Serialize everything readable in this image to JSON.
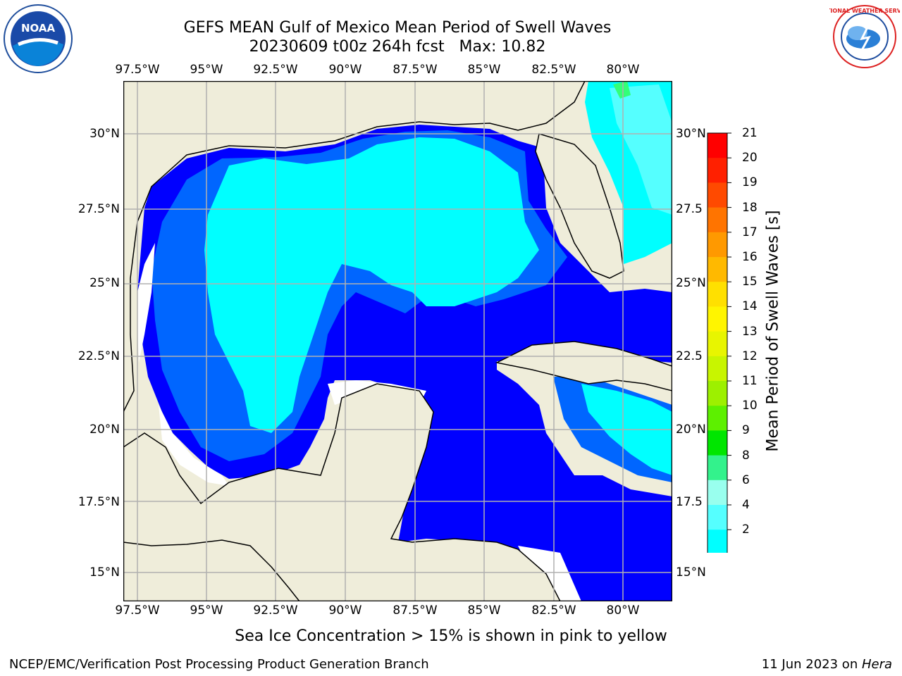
{
  "title": "GEFS MEAN Gulf of Mexico Mean Period of Swell Waves",
  "subtitle": "20230609 t00z 264h fcst   Max: 10.82",
  "footer_note": "Sea Ice Concentration > 15% is shown in pink to yellow",
  "credit": "NCEP/EMC/Verification Post Processing Product Generation Branch",
  "date_line": {
    "date": "11 Jun 2023 on ",
    "host": "Hera"
  },
  "logos": {
    "left": "NOAA",
    "right": "NATIONAL WEATHER SERVICE"
  },
  "lon_labels": [
    "97.5°W",
    "95°W",
    "92.5°W",
    "90°W",
    "87.5°W",
    "85°W",
    "82.5°W",
    "80°W"
  ],
  "lat_labels_left": [
    "30°N",
    "27.5°N",
    "25°N",
    "22.5°N",
    "20°N",
    "17.5°N",
    "15°N"
  ],
  "lat_labels_right": [
    "30°N",
    "27.5",
    "25°N",
    "22.5",
    "20°N",
    "17.5",
    "15°N"
  ],
  "colorbar": {
    "label": "Mean Period of Swell Waves [s]",
    "ticks": [
      "21",
      "20",
      "19",
      "18",
      "17",
      "16",
      "15",
      "14",
      "13",
      "12",
      "11",
      "10",
      "9",
      "8",
      "6",
      "4",
      "2"
    ],
    "colors": [
      "#ff0000",
      "#ff2000",
      "#ff4a00",
      "#ff7400",
      "#ff9900",
      "#ffb900",
      "#ffe000",
      "#fff500",
      "#e8f500",
      "#c8f500",
      "#9df000",
      "#5df000",
      "#00e600",
      "#33f28c",
      "#99ffee",
      "#55ffff",
      "#00ffff",
      "#0066ff"
    ],
    "extend_color": "#0000ff"
  },
  "map_colors": {
    "land": "#efedda",
    "sea_deep": "#0000ff",
    "sea_mid": "#0066ff",
    "sea_light": "#00ffff",
    "sea_pale": "#55ffff",
    "green": "#33ff77",
    "green2": "#00e600",
    "grid": "#b0b0b0"
  }
}
